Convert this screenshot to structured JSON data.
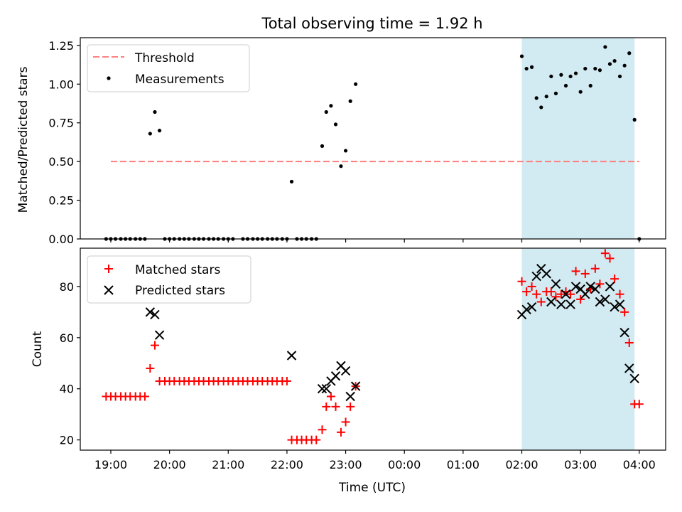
{
  "figure": {
    "title": "Total observing time = 1.92 h",
    "xlabel": "Time (UTC)",
    "x_ticks": [
      "19:00",
      "20:00",
      "21:00",
      "22:00",
      "23:00",
      "00:00",
      "01:00",
      "02:00",
      "03:00",
      "04:00"
    ]
  },
  "chart_data": [
    {
      "type": "scatter",
      "panel": "top",
      "ylabel": "Matched/Predicted stars",
      "ylim": [
        0,
        1.3
      ],
      "y_ticks": [
        "0.00",
        "0.25",
        "0.50",
        "0.75",
        "1.00",
        "1.25"
      ],
      "x_unit": "hours since 19:00 UTC",
      "xlim": [
        -0.52,
        9.45
      ],
      "legend": {
        "position": "top-left",
        "entries": [
          "Threshold",
          "Measurements"
        ]
      },
      "highlight_span": {
        "x_start": 7.0,
        "x_end": 8.92,
        "color": "#add8e6"
      },
      "threshold": {
        "name": "Threshold",
        "y": 0.5,
        "x_range": [
          0,
          9
        ],
        "color": "#ff7f7f"
      },
      "series": [
        {
          "name": "Measurements",
          "color": "#000000",
          "points": [
            [
              -0.08,
              0
            ],
            [
              0,
              0
            ],
            [
              0.08,
              0
            ],
            [
              0.17,
              0
            ],
            [
              0.25,
              0
            ],
            [
              0.33,
              0
            ],
            [
              0.42,
              0
            ],
            [
              0.5,
              0
            ],
            [
              0.58,
              0
            ],
            [
              0.67,
              0.68
            ],
            [
              0.75,
              0.82
            ],
            [
              0.83,
              0.7
            ],
            [
              0.92,
              0
            ],
            [
              1.0,
              0
            ],
            [
              1.08,
              0
            ],
            [
              1.17,
              0
            ],
            [
              1.25,
              0
            ],
            [
              1.33,
              0
            ],
            [
              1.42,
              0
            ],
            [
              1.5,
              0
            ],
            [
              1.58,
              0
            ],
            [
              1.67,
              0
            ],
            [
              1.75,
              0
            ],
            [
              1.83,
              0
            ],
            [
              1.92,
              0
            ],
            [
              2.0,
              0
            ],
            [
              2.08,
              0
            ],
            [
              2.25,
              0
            ],
            [
              2.33,
              0
            ],
            [
              2.42,
              0
            ],
            [
              2.5,
              0
            ],
            [
              2.58,
              0
            ],
            [
              2.67,
              0
            ],
            [
              2.75,
              0
            ],
            [
              2.83,
              0
            ],
            [
              2.92,
              0
            ],
            [
              3.0,
              0
            ],
            [
              3.08,
              0.37
            ],
            [
              3.17,
              0
            ],
            [
              3.25,
              0
            ],
            [
              3.33,
              0
            ],
            [
              3.42,
              0
            ],
            [
              3.5,
              0
            ],
            [
              3.6,
              0.6
            ],
            [
              3.67,
              0.82
            ],
            [
              3.75,
              0.86
            ],
            [
              3.83,
              0.74
            ],
            [
              3.92,
              0.47
            ],
            [
              4.0,
              0.57
            ],
            [
              4.08,
              0.89
            ],
            [
              4.17,
              1.0
            ],
            [
              7.0,
              1.18
            ],
            [
              7.08,
              1.1
            ],
            [
              7.17,
              1.11
            ],
            [
              7.25,
              0.91
            ],
            [
              7.33,
              0.85
            ],
            [
              7.42,
              0.92
            ],
            [
              7.5,
              1.05
            ],
            [
              7.58,
              0.94
            ],
            [
              7.67,
              1.06
            ],
            [
              7.75,
              0.99
            ],
            [
              7.83,
              1.05
            ],
            [
              7.92,
              1.07
            ],
            [
              8.0,
              0.95
            ],
            [
              8.08,
              1.1
            ],
            [
              8.17,
              0.99
            ],
            [
              8.25,
              1.1
            ],
            [
              8.33,
              1.09
            ],
            [
              8.42,
              1.24
            ],
            [
              8.5,
              1.13
            ],
            [
              8.58,
              1.15
            ],
            [
              8.67,
              1.05
            ],
            [
              8.75,
              1.12
            ],
            [
              8.83,
              1.2
            ],
            [
              8.92,
              0.77
            ],
            [
              9.0,
              0
            ]
          ]
        }
      ]
    },
    {
      "type": "scatter",
      "panel": "bottom",
      "ylabel": "Count",
      "ylim": [
        16,
        95
      ],
      "y_ticks": [
        "20",
        "40",
        "60",
        "80"
      ],
      "x_unit": "hours since 19:00 UTC",
      "xlim": [
        -0.52,
        9.45
      ],
      "legend": {
        "position": "top-left",
        "entries": [
          "Matched stars",
          "Predicted stars"
        ]
      },
      "highlight_span": {
        "x_start": 7.0,
        "x_end": 8.92,
        "color": "#add8e6"
      },
      "series": [
        {
          "name": "Matched stars",
          "marker": "plus",
          "color": "#ff0000",
          "points": [
            [
              -0.08,
              37
            ],
            [
              0,
              37
            ],
            [
              0.08,
              37
            ],
            [
              0.17,
              37
            ],
            [
              0.25,
              37
            ],
            [
              0.33,
              37
            ],
            [
              0.42,
              37
            ],
            [
              0.5,
              37
            ],
            [
              0.58,
              37
            ],
            [
              0.67,
              48
            ],
            [
              0.75,
              57
            ],
            [
              0.83,
              43
            ],
            [
              0.92,
              43
            ],
            [
              1.0,
              43
            ],
            [
              1.08,
              43
            ],
            [
              1.17,
              43
            ],
            [
              1.25,
              43
            ],
            [
              1.33,
              43
            ],
            [
              1.42,
              43
            ],
            [
              1.5,
              43
            ],
            [
              1.58,
              43
            ],
            [
              1.67,
              43
            ],
            [
              1.75,
              43
            ],
            [
              1.83,
              43
            ],
            [
              1.92,
              43
            ],
            [
              2.0,
              43
            ],
            [
              2.08,
              43
            ],
            [
              2.17,
              43
            ],
            [
              2.25,
              43
            ],
            [
              2.33,
              43
            ],
            [
              2.42,
              43
            ],
            [
              2.5,
              43
            ],
            [
              2.58,
              43
            ],
            [
              2.67,
              43
            ],
            [
              2.75,
              43
            ],
            [
              2.83,
              43
            ],
            [
              2.92,
              43
            ],
            [
              3.0,
              43
            ],
            [
              3.08,
              20
            ],
            [
              3.17,
              20
            ],
            [
              3.25,
              20
            ],
            [
              3.33,
              20
            ],
            [
              3.42,
              20
            ],
            [
              3.5,
              20
            ],
            [
              3.6,
              24
            ],
            [
              3.67,
              33
            ],
            [
              3.75,
              37
            ],
            [
              3.83,
              33
            ],
            [
              3.92,
              23
            ],
            [
              4.0,
              27
            ],
            [
              4.08,
              33
            ],
            [
              4.17,
              41
            ],
            [
              7.0,
              82
            ],
            [
              7.08,
              78
            ],
            [
              7.17,
              80
            ],
            [
              7.25,
              77
            ],
            [
              7.33,
              74
            ],
            [
              7.42,
              78
            ],
            [
              7.5,
              78
            ],
            [
              7.58,
              76
            ],
            [
              7.67,
              77
            ],
            [
              7.75,
              78
            ],
            [
              7.83,
              77
            ],
            [
              7.92,
              86
            ],
            [
              8.0,
              75
            ],
            [
              8.08,
              85
            ],
            [
              8.17,
              79
            ],
            [
              8.25,
              87
            ],
            [
              8.33,
              81
            ],
            [
              8.42,
              93
            ],
            [
              8.5,
              91
            ],
            [
              8.58,
              83
            ],
            [
              8.67,
              77
            ],
            [
              8.75,
              70
            ],
            [
              8.83,
              58
            ],
            [
              8.92,
              34
            ],
            [
              9.0,
              34
            ]
          ]
        },
        {
          "name": "Predicted stars",
          "marker": "x",
          "color": "#000000",
          "points": [
            [
              0.67,
              70
            ],
            [
              0.75,
              69
            ],
            [
              0.83,
              61
            ],
            [
              3.08,
              53
            ],
            [
              3.6,
              40
            ],
            [
              3.67,
              40
            ],
            [
              3.75,
              43
            ],
            [
              3.83,
              45
            ],
            [
              3.92,
              49
            ],
            [
              4.0,
              47
            ],
            [
              4.08,
              37
            ],
            [
              4.17,
              41
            ],
            [
              7.0,
              69
            ],
            [
              7.08,
              71
            ],
            [
              7.17,
              72
            ],
            [
              7.25,
              84
            ],
            [
              7.33,
              87
            ],
            [
              7.42,
              85
            ],
            [
              7.5,
              74
            ],
            [
              7.58,
              81
            ],
            [
              7.67,
              73
            ],
            [
              7.75,
              77
            ],
            [
              7.83,
              73
            ],
            [
              7.92,
              80
            ],
            [
              8.0,
              79
            ],
            [
              8.08,
              77
            ],
            [
              8.17,
              80
            ],
            [
              8.25,
              79
            ],
            [
              8.33,
              74
            ],
            [
              8.42,
              75
            ],
            [
              8.5,
              80
            ],
            [
              8.58,
              72
            ],
            [
              8.67,
              73
            ],
            [
              8.75,
              62
            ],
            [
              8.83,
              48
            ],
            [
              8.92,
              44
            ]
          ]
        }
      ]
    }
  ]
}
